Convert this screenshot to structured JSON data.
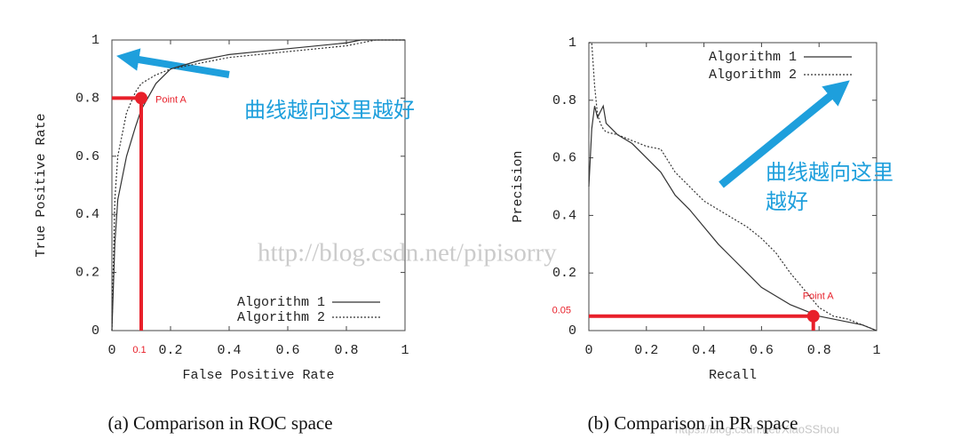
{
  "chart_data": [
    {
      "type": "line",
      "caption": "(a) Comparison in ROC space",
      "xlabel": "False Positive Rate",
      "ylabel": "True Positive Rate",
      "x": [
        0,
        0.01,
        0.02,
        0.05,
        0.08,
        0.1,
        0.15,
        0.2,
        0.3,
        0.4,
        0.5,
        0.6,
        0.7,
        0.8,
        0.85,
        0.9,
        1
      ],
      "series": [
        {
          "name": "Algorithm 1",
          "color": "#333333",
          "line_style": "solid",
          "values": [
            0,
            0.3,
            0.45,
            0.6,
            0.7,
            0.76,
            0.85,
            0.9,
            0.93,
            0.95,
            0.96,
            0.97,
            0.98,
            0.99,
            1,
            1,
            1
          ]
        },
        {
          "name": "Algorithm 2",
          "color": "#333333",
          "line_style": "dotted",
          "values": [
            0,
            0.45,
            0.6,
            0.75,
            0.82,
            0.85,
            0.88,
            0.9,
            0.92,
            0.94,
            0.95,
            0.96,
            0.97,
            0.98,
            0.99,
            1,
            1
          ]
        }
      ],
      "xlim": [
        0,
        1
      ],
      "ylim": [
        0,
        1
      ],
      "xticks": [
        0,
        0.2,
        0.4,
        0.6,
        0.8,
        1
      ],
      "yticks": [
        0,
        0.2,
        0.4,
        0.6,
        0.8,
        1
      ],
      "legend": "lower right",
      "point": {
        "name": "Point A",
        "x": 0.1,
        "y": 0.8,
        "color": "#e8202a",
        "printed_axis": "x"
      },
      "note": [
        "曲线越向这里越好"
      ]
    },
    {
      "type": "line",
      "caption": "(b) Comparison in PR space",
      "xlabel": "Recall",
      "ylabel": "Precision",
      "x": [
        0,
        0.01,
        0.02,
        0.03,
        0.04,
        0.05,
        0.06,
        0.1,
        0.15,
        0.2,
        0.25,
        0.3,
        0.35,
        0.4,
        0.45,
        0.5,
        0.55,
        0.6,
        0.65,
        0.7,
        0.75,
        0.8,
        0.85,
        0.9,
        0.95,
        1
      ],
      "series": [
        {
          "name": "Algorithm 1",
          "color": "#333333",
          "line_style": "solid",
          "values": [
            0.5,
            0.7,
            0.78,
            0.74,
            0.76,
            0.78,
            0.72,
            0.68,
            0.65,
            0.6,
            0.55,
            0.47,
            0.42,
            0.36,
            0.3,
            0.25,
            0.2,
            0.15,
            0.12,
            0.09,
            0.07,
            0.05,
            0.04,
            0.03,
            0.02,
            0
          ]
        },
        {
          "name": "Algorithm 2",
          "color": "#333333",
          "line_style": "dotted",
          "values": [
            1,
            1,
            0.85,
            0.75,
            0.72,
            0.7,
            0.69,
            0.68,
            0.66,
            0.64,
            0.63,
            0.55,
            0.5,
            0.45,
            0.42,
            0.39,
            0.36,
            0.32,
            0.27,
            0.2,
            0.14,
            0.08,
            0.05,
            0.04,
            0.02,
            0
          ]
        }
      ],
      "xlim": [
        0,
        1
      ],
      "ylim": [
        0,
        1
      ],
      "xticks": [
        0,
        0.2,
        0.4,
        0.6,
        0.8,
        1
      ],
      "yticks": [
        0,
        0.2,
        0.4,
        0.6,
        0.8,
        1
      ],
      "legend": "upper right",
      "point": {
        "name": "Point A",
        "x": 0.78,
        "y": 0.05,
        "color": "#e8202a",
        "printed_axis": "y"
      },
      "note": [
        "曲线越向这里",
        "越好"
      ]
    }
  ],
  "watermarks": [
    "http://blog.csdn.net/pipisorry",
    "https://blog.csdn.net/XiaoSShou"
  ]
}
